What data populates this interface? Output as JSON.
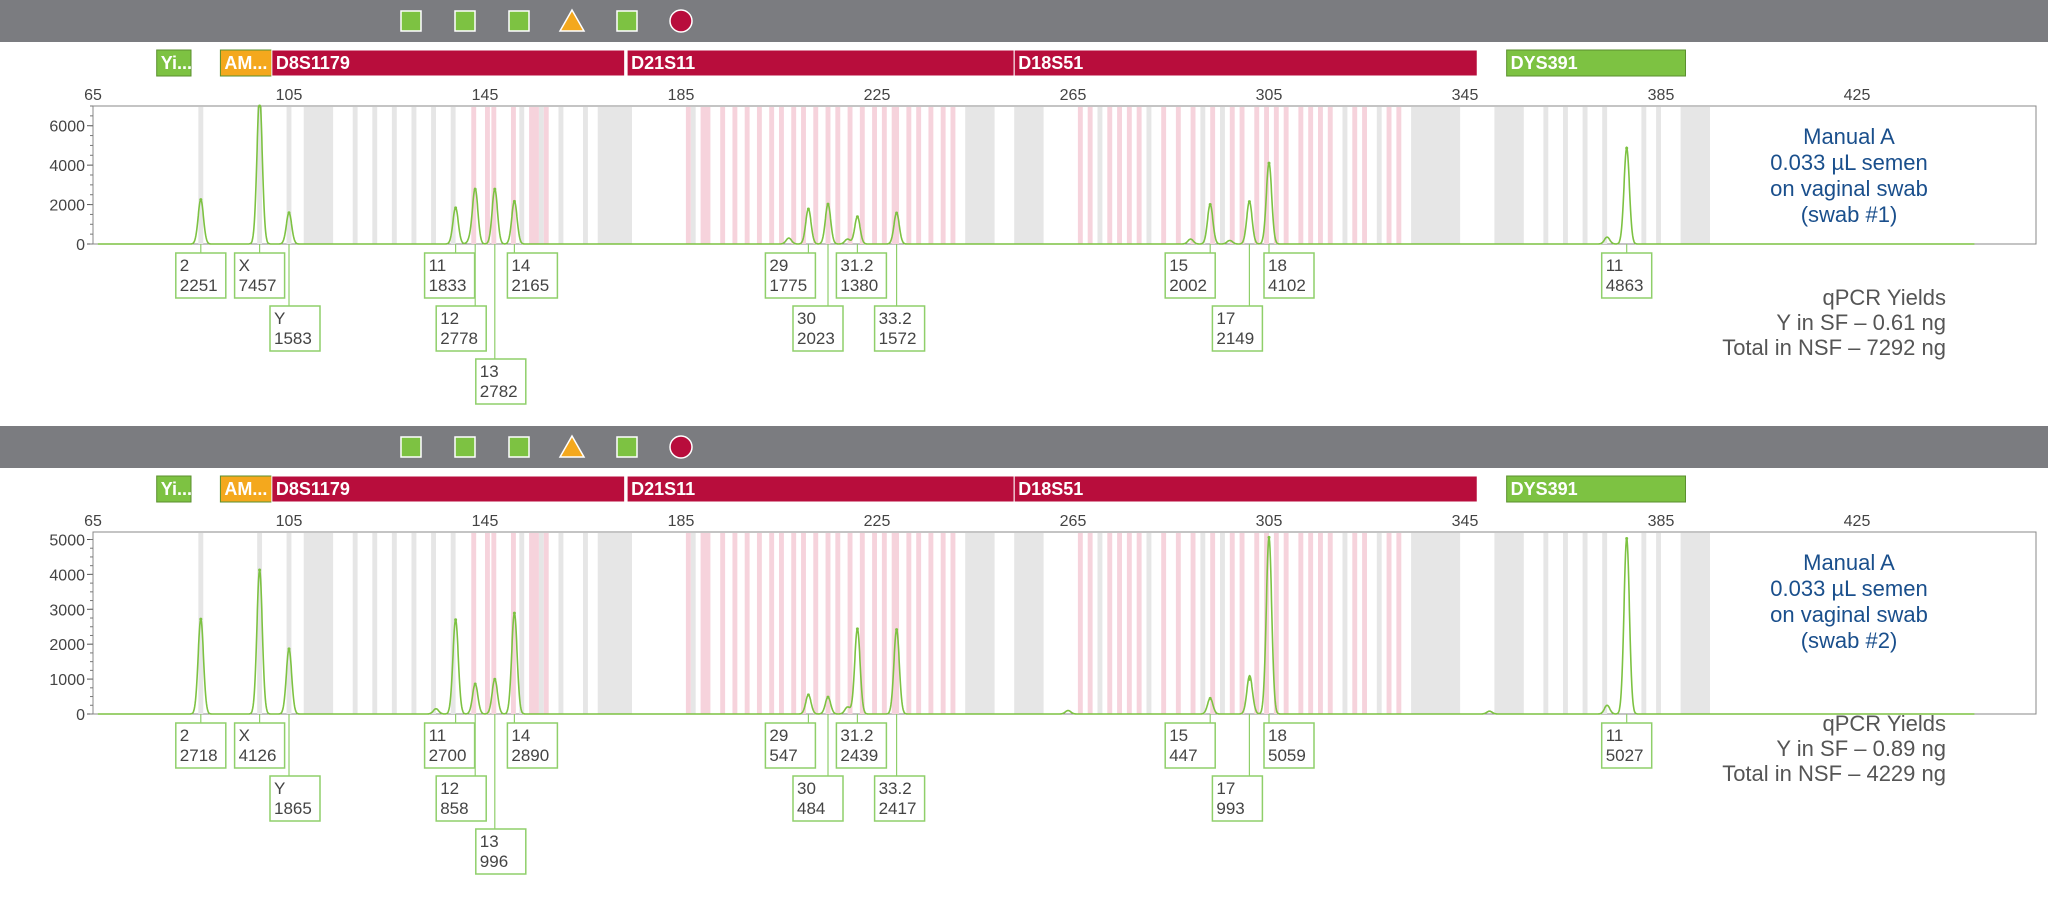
{
  "colors": {
    "toolbar_bg": "#7b7c80",
    "green": "#7dc242",
    "orange": "#f4a81d",
    "crimson": "#b80d3c",
    "trace": "#7dc242",
    "label_box": "#8fcf6a",
    "annotation_blue": "#1a4f8c",
    "annotation_gray": "#555555",
    "bin_gray": "#e6e6e6",
    "bin_pink": "#f6d3dc"
  },
  "panels": [
    {
      "toolbar": {
        "icons": [
          "square-icon",
          "square-icon",
          "square-icon",
          "triangle-icon",
          "square-icon",
          "circle-icon"
        ]
      },
      "markers": [
        {
          "label": "Yi...",
          "color": "green"
        },
        {
          "label": "AM...",
          "color": "orange"
        },
        {
          "label": "D8S1179",
          "color": "crimson"
        },
        {
          "label": "D21S11",
          "color": "crimson"
        },
        {
          "label": "D18S51",
          "color": "crimson"
        },
        {
          "label": "DYS391",
          "color": "green"
        }
      ],
      "annotation": {
        "lines": [
          "Manual A",
          "0.033 µL semen",
          "on vaginal swab",
          "(swab #1)"
        ]
      },
      "qpcr": {
        "lines": [
          "qPCR Yields",
          "Y in SF – 0.61 ng",
          "Total in NSF – 7292 ng"
        ]
      },
      "chart_data": {
        "type": "line",
        "xlim": [
          65,
          450
        ],
        "x_ticks": [
          65,
          105,
          145,
          185,
          225,
          265,
          305,
          345,
          385,
          425
        ],
        "ylim": [
          0,
          7000
        ],
        "y_ticks": [
          0,
          2000,
          4000,
          6000
        ],
        "peaks": [
          {
            "x": 87,
            "height": 2251,
            "allele": "2",
            "value": "2251"
          },
          {
            "x": 99,
            "height": 7457,
            "allele": "X",
            "value": "7457"
          },
          {
            "x": 105,
            "height": 1583,
            "allele": "Y",
            "value": "1583"
          },
          {
            "x": 139,
            "height": 1833,
            "allele": "11",
            "value": "1833"
          },
          {
            "x": 143,
            "height": 2778,
            "allele": "12",
            "value": "2778"
          },
          {
            "x": 147,
            "height": 2782,
            "allele": "13",
            "value": "2782"
          },
          {
            "x": 151,
            "height": 2165,
            "allele": "14",
            "value": "2165"
          },
          {
            "x": 211,
            "height": 1775,
            "allele": "29",
            "value": "1775"
          },
          {
            "x": 215,
            "height": 2023,
            "allele": "30",
            "value": "2023"
          },
          {
            "x": 221,
            "height": 1380,
            "allele": "31.2",
            "value": "1380"
          },
          {
            "x": 229,
            "height": 1572,
            "allele": "33.2",
            "value": "1572"
          },
          {
            "x": 293,
            "height": 2002,
            "allele": "15",
            "value": "2002"
          },
          {
            "x": 301,
            "height": 2149,
            "allele": "17",
            "value": "2149"
          },
          {
            "x": 305,
            "height": 4102,
            "allele": "18",
            "value": "4102"
          },
          {
            "x": 378,
            "height": 4863,
            "allele": "11",
            "value": "4863"
          }
        ],
        "minor_peaks": [
          {
            "x": 142,
            "height": 200
          },
          {
            "x": 207,
            "height": 300
          },
          {
            "x": 219,
            "height": 250
          },
          {
            "x": 289,
            "height": 250
          },
          {
            "x": 297,
            "height": 180
          },
          {
            "x": 374,
            "height": 350
          }
        ]
      }
    },
    {
      "toolbar": {
        "icons": [
          "square-icon",
          "square-icon",
          "square-icon",
          "triangle-icon",
          "square-icon",
          "circle-icon"
        ]
      },
      "markers": [
        {
          "label": "Yi...",
          "color": "green"
        },
        {
          "label": "AM...",
          "color": "orange"
        },
        {
          "label": "D8S1179",
          "color": "crimson"
        },
        {
          "label": "D21S11",
          "color": "crimson"
        },
        {
          "label": "D18S51",
          "color": "crimson"
        },
        {
          "label": "DYS391",
          "color": "green"
        }
      ],
      "annotation": {
        "lines": [
          "Manual A",
          "0.033 µL semen",
          "on vaginal swab",
          "(swab #2)"
        ]
      },
      "qpcr": {
        "lines": [
          "qPCR Yields",
          "Y in SF – 0.89 ng",
          "Total in NSF – 4229 ng"
        ]
      },
      "chart_data": {
        "type": "line",
        "xlim": [
          65,
          450
        ],
        "x_ticks": [
          65,
          105,
          145,
          185,
          225,
          265,
          305,
          345,
          385,
          425
        ],
        "ylim": [
          0,
          5100
        ],
        "y_ticks": [
          0,
          1000,
          2000,
          3000,
          4000,
          5000
        ],
        "peaks": [
          {
            "x": 87,
            "height": 2718,
            "allele": "2",
            "value": "2718"
          },
          {
            "x": 99,
            "height": 4126,
            "allele": "X",
            "value": "4126"
          },
          {
            "x": 105,
            "height": 1865,
            "allele": "Y",
            "value": "1865"
          },
          {
            "x": 139,
            "height": 2700,
            "allele": "11",
            "value": "2700"
          },
          {
            "x": 143,
            "height": 858,
            "allele": "12",
            "value": "858"
          },
          {
            "x": 147,
            "height": 996,
            "allele": "13",
            "value": "996"
          },
          {
            "x": 151,
            "height": 2890,
            "allele": "14",
            "value": "2890"
          },
          {
            "x": 211,
            "height": 547,
            "allele": "29",
            "value": "547"
          },
          {
            "x": 215,
            "height": 484,
            "allele": "30",
            "value": "484"
          },
          {
            "x": 221,
            "height": 2439,
            "allele": "31.2",
            "value": "2439"
          },
          {
            "x": 229,
            "height": 2417,
            "allele": "33.2",
            "value": "2417"
          },
          {
            "x": 293,
            "height": 447,
            "allele": "15",
            "value": "447"
          },
          {
            "x": 301,
            "height": 993,
            "allele": "17",
            "value": "993"
          },
          {
            "x": 305,
            "height": 5059,
            "allele": "18",
            "value": "5059"
          },
          {
            "x": 378,
            "height": 5027,
            "allele": "11",
            "value": "5027"
          }
        ],
        "minor_peaks": [
          {
            "x": 135,
            "height": 150
          },
          {
            "x": 219,
            "height": 200
          },
          {
            "x": 301.5,
            "height": 150
          },
          {
            "x": 374,
            "height": 250
          },
          {
            "x": 264,
            "height": 100
          },
          {
            "x": 350,
            "height": 80
          }
        ]
      }
    }
  ]
}
